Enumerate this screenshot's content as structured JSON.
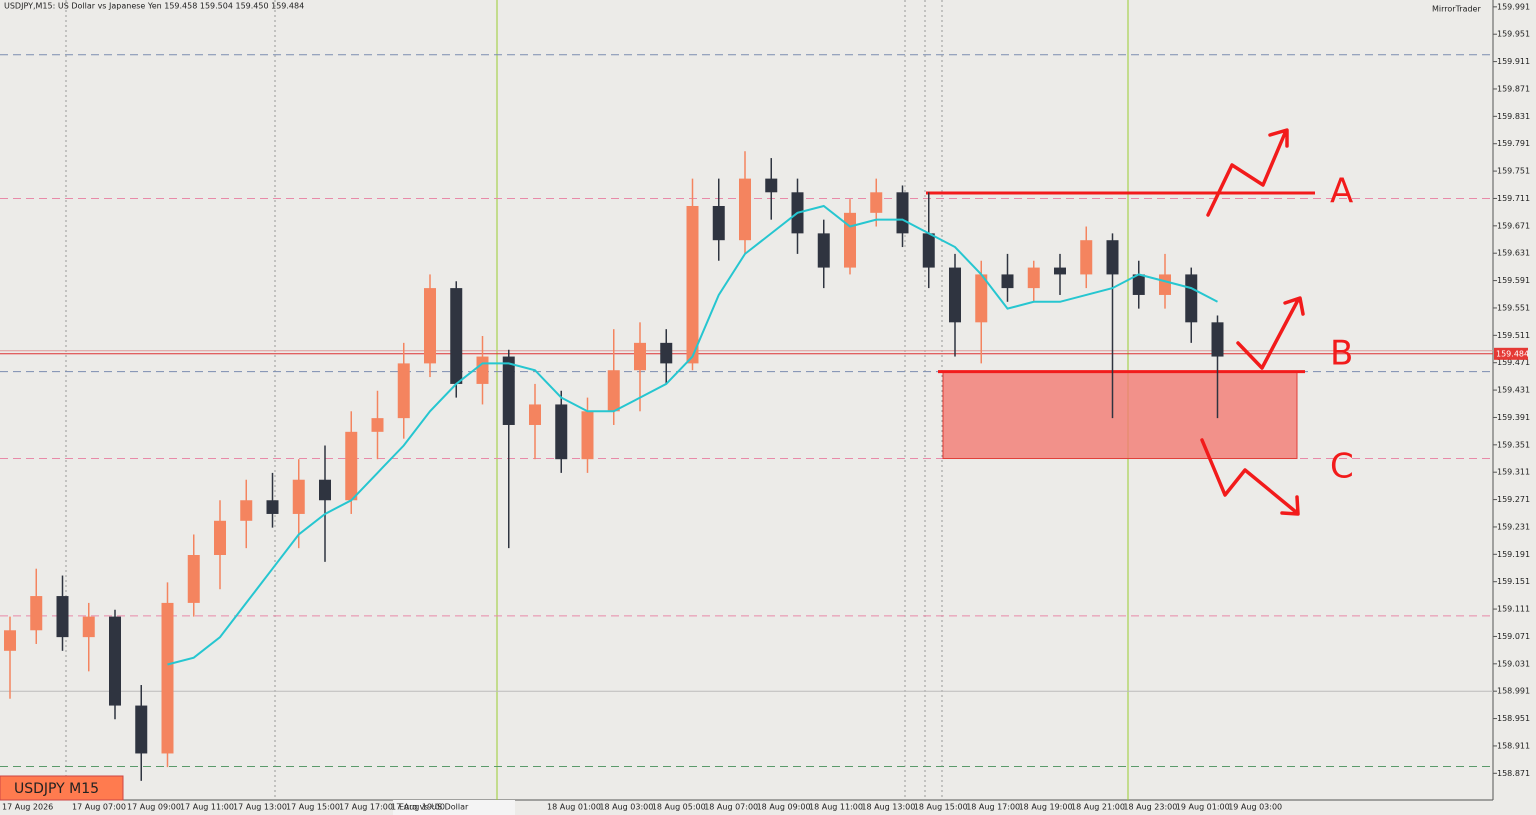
{
  "header": {
    "info": "USDJPY,M15: US Dollar vs Japanese Yen 159.458 159.504 159.450 159.484",
    "broker": "MirrorTrader",
    "badge": "USDJPY M15",
    "tab": "Euro vs US Dollar"
  },
  "chart_data": {
    "type": "candlestick",
    "up_color": "#f4845f",
    "down_color": "#2f3440",
    "x_labels": [
      "17 Aug 2026",
      "17 Aug 07:00",
      "17 Aug 09:00",
      "17 Aug 11:00",
      "17 Aug 13:00",
      "17 Aug 15:00",
      "17 Aug 17:00",
      "17 Aug 19:00",
      "18 Aug 01:00",
      "18 Aug 03:00",
      "18 Aug 05:00",
      "18 Aug 07:00",
      "18 Aug 09:00",
      "18 Aug 11:00",
      "18 Aug 13:00",
      "18 Aug 15:00",
      "18 Aug 17:00",
      "18 Aug 19:00",
      "18 Aug 21:00",
      "18 Aug 23:00",
      "19 Aug 01:00",
      "19 Aug 03:00"
    ],
    "candles": [
      [
        159.05,
        159.1,
        158.98,
        159.08
      ],
      [
        159.08,
        159.17,
        159.06,
        159.13
      ],
      [
        159.13,
        159.16,
        159.05,
        159.07
      ],
      [
        159.07,
        159.12,
        159.02,
        159.1
      ],
      [
        159.1,
        159.11,
        158.95,
        158.97
      ],
      [
        158.97,
        159.0,
        158.86,
        158.9
      ],
      [
        158.9,
        159.15,
        158.88,
        159.12
      ],
      [
        159.12,
        159.22,
        159.1,
        159.19
      ],
      [
        159.19,
        159.27,
        159.14,
        159.24
      ],
      [
        159.24,
        159.3,
        159.2,
        159.27
      ],
      [
        159.27,
        159.31,
        159.23,
        159.25
      ],
      [
        159.25,
        159.33,
        159.2,
        159.3
      ],
      [
        159.3,
        159.35,
        159.18,
        159.27
      ],
      [
        159.27,
        159.4,
        159.25,
        159.37
      ],
      [
        159.37,
        159.43,
        159.33,
        159.39
      ],
      [
        159.39,
        159.5,
        159.36,
        159.47
      ],
      [
        159.47,
        159.6,
        159.45,
        159.58
      ],
      [
        159.58,
        159.59,
        159.42,
        159.44
      ],
      [
        159.44,
        159.51,
        159.41,
        159.48
      ],
      [
        159.48,
        159.49,
        159.2,
        159.38
      ],
      [
        159.38,
        159.44,
        159.33,
        159.41
      ],
      [
        159.41,
        159.43,
        159.31,
        159.33
      ],
      [
        159.33,
        159.42,
        159.31,
        159.4
      ],
      [
        159.4,
        159.52,
        159.38,
        159.46
      ],
      [
        159.46,
        159.53,
        159.4,
        159.5
      ],
      [
        159.5,
        159.52,
        159.44,
        159.47
      ],
      [
        159.47,
        159.74,
        159.46,
        159.7
      ],
      [
        159.7,
        159.74,
        159.62,
        159.65
      ],
      [
        159.65,
        159.78,
        159.63,
        159.74
      ],
      [
        159.74,
        159.77,
        159.68,
        159.72
      ],
      [
        159.72,
        159.74,
        159.63,
        159.66
      ],
      [
        159.66,
        159.68,
        159.58,
        159.61
      ],
      [
        159.61,
        159.71,
        159.6,
        159.69
      ],
      [
        159.69,
        159.74,
        159.67,
        159.72
      ],
      [
        159.72,
        159.73,
        159.64,
        159.66
      ],
      [
        159.66,
        159.72,
        159.58,
        159.61
      ],
      [
        159.61,
        159.63,
        159.48,
        159.53
      ],
      [
        159.53,
        159.62,
        159.47,
        159.6
      ],
      [
        159.6,
        159.63,
        159.56,
        159.58
      ],
      [
        159.58,
        159.62,
        159.56,
        159.61
      ],
      [
        159.61,
        159.63,
        159.57,
        159.6
      ],
      [
        159.6,
        159.67,
        159.58,
        159.65
      ],
      [
        159.65,
        159.66,
        159.39,
        159.6
      ],
      [
        159.6,
        159.62,
        159.55,
        159.57
      ],
      [
        159.57,
        159.63,
        159.55,
        159.6
      ],
      [
        159.6,
        159.61,
        159.5,
        159.53
      ],
      [
        159.53,
        159.54,
        159.39,
        159.48
      ]
    ],
    "ma": {
      "color": "#26c6d0",
      "values": [
        null,
        null,
        null,
        null,
        null,
        null,
        159.03,
        159.04,
        159.07,
        159.12,
        159.17,
        159.22,
        159.25,
        159.27,
        159.31,
        159.35,
        159.4,
        159.44,
        159.47,
        159.47,
        159.46,
        159.42,
        159.4,
        159.4,
        159.42,
        159.44,
        159.48,
        159.57,
        159.63,
        159.66,
        159.69,
        159.7,
        159.67,
        159.68,
        159.68,
        159.66,
        159.64,
        159.6,
        159.55,
        159.56,
        159.56,
        159.57,
        159.58,
        159.6,
        159.59,
        159.58,
        159.56
      ]
    },
    "horizontal_lines": [
      {
        "value": 159.921,
        "color": "#7b8db0",
        "style": "dashed"
      },
      {
        "value": 159.711,
        "color": "#e88aa8",
        "style": "dashed"
      },
      {
        "value": 159.458,
        "color": "#7b8db0",
        "style": "dashed"
      },
      {
        "value": 159.331,
        "color": "#e88aa8",
        "style": "dashed"
      },
      {
        "value": 159.101,
        "color": "#e88aa8",
        "style": "dashed"
      },
      {
        "value": 158.991,
        "color": "#bbbbbb",
        "style": "solid"
      },
      {
        "value": 158.881,
        "color": "#5a9a6a",
        "style": "dashed"
      }
    ],
    "zone": {
      "top": 159.458,
      "bottom": 159.331,
      "color": "#f47a72"
    },
    "resistance": 159.719,
    "current_price": {
      "value": 159.484,
      "label": "159.484"
    },
    "annotations": [
      {
        "text": "A",
        "value": 159.719
      },
      {
        "text": "B",
        "value": 159.482
      },
      {
        "text": "C",
        "value": 159.317
      }
    ],
    "ylim": [
      158.832,
      160.001
    ],
    "yticks": [
      159.991,
      159.951,
      159.911,
      159.871,
      159.831,
      159.791,
      159.751,
      159.711,
      159.671,
      159.631,
      159.591,
      159.551,
      159.511,
      159.471,
      159.431,
      159.391,
      159.351,
      159.311,
      159.271,
      159.231,
      159.191,
      159.151,
      159.111,
      159.071,
      159.031,
      158.991,
      158.951,
      158.911,
      158.871
    ]
  }
}
